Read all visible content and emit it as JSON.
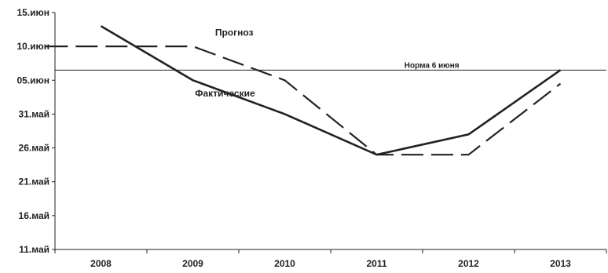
{
  "chart_data": {
    "type": "line",
    "title": "",
    "xlabel": "",
    "ylabel": "",
    "categories": [
      "2008",
      "2009",
      "2010",
      "2011",
      "2012",
      "2013"
    ],
    "y_ticks": [
      {
        "label": "11.май",
        "value": 11
      },
      {
        "label": "16.май",
        "value": 16
      },
      {
        "label": "21.май",
        "value": 21
      },
      {
        "label": "26.май",
        "value": 26
      },
      {
        "label": "31.май",
        "value": 31
      },
      {
        "label": "05.июн",
        "value": 36
      },
      {
        "label": "10.июн",
        "value": 41
      },
      {
        "label": "15.июн",
        "value": 46
      }
    ],
    "ylim": [
      11,
      46
    ],
    "y_units": "days counted from 1 May (11 = 11 May, 36 = 5 June)",
    "series": [
      {
        "name": "Фактические",
        "style": "solid",
        "color": "#222222",
        "points": [
          {
            "x": 2008,
            "y": 44
          },
          {
            "x": 2009,
            "y": 36
          },
          {
            "x": 2010,
            "y": 31
          },
          {
            "x": 2011,
            "y": 25
          },
          {
            "x": 2012,
            "y": 28
          },
          {
            "x": 2013,
            "y": 37.5
          }
        ]
      },
      {
        "name": "Прогноз",
        "style": "dashed",
        "color": "#222222",
        "points": [
          {
            "x": 2007.4,
            "y": 41
          },
          {
            "x": 2009,
            "y": 41
          },
          {
            "x": 2010,
            "y": 36
          },
          {
            "x": 2011,
            "y": 25
          },
          {
            "x": 2012,
            "y": 25
          },
          {
            "x": 2013,
            "y": 35.5
          }
        ]
      }
    ],
    "reference_line": {
      "label": "Норма 6 июня",
      "value": 37.5
    },
    "grid": false,
    "legend": "none"
  }
}
